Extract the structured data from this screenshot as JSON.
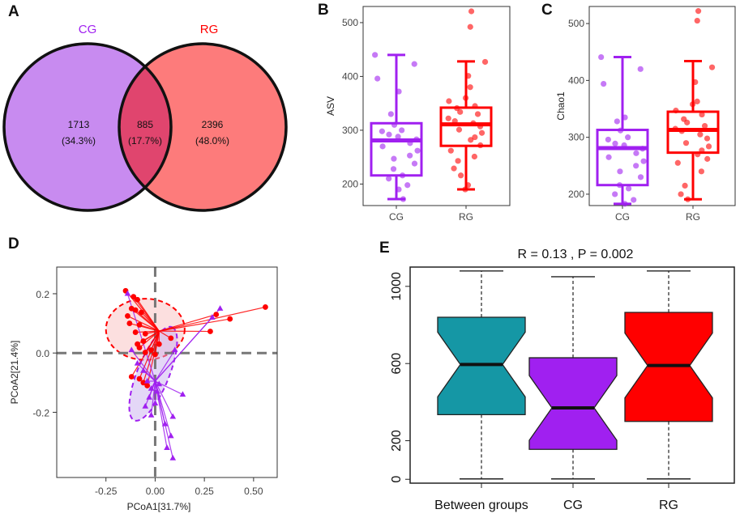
{
  "panels": {
    "a": "A",
    "b": "B",
    "c": "C",
    "d": "D",
    "e": "E"
  },
  "colors": {
    "cg": "#a020f0",
    "rg": "#ff0000",
    "cg_fill": "#c88bf0",
    "rg_fill": "#fd7b7b",
    "overlap": "#e0456e",
    "between": "#1597a5",
    "grey": "#777777"
  },
  "chart_data": [
    {
      "panel": "A",
      "type": "venn",
      "sets": [
        {
          "name": "CG",
          "only": "1713",
          "pct": "(34.3%)"
        },
        {
          "name": "RG",
          "only": "2396",
          "pct": "(48.0%)"
        }
      ],
      "overlap": {
        "value": "885",
        "pct": "(17.7%)"
      }
    },
    {
      "panel": "B",
      "type": "box",
      "ylabel": "ASV",
      "ylim": [
        160,
        530
      ],
      "yticks": [
        200,
        300,
        400,
        500
      ],
      "categories": [
        "CG",
        "RG"
      ],
      "boxes": [
        {
          "name": "CG",
          "min": 172,
          "q1": 216,
          "median": 281,
          "q3": 313,
          "max": 440,
          "points": [
            440,
            423,
            396,
            372,
            330,
            310,
            300,
            298,
            292,
            288,
            283,
            276,
            270,
            262,
            253,
            247,
            238,
            228,
            216,
            210,
            198,
            190,
            172
          ]
        },
        {
          "name": "RG",
          "min": 190,
          "q1": 271,
          "median": 311,
          "q3": 342,
          "max": 428,
          "points": [
            521,
            492,
            427,
            401,
            380,
            360,
            354,
            345,
            341,
            334,
            330,
            322,
            317,
            313,
            307,
            301,
            295,
            287,
            282,
            272,
            262,
            251,
            243,
            229,
            216,
            198,
            190
          ]
        }
      ]
    },
    {
      "panel": "C",
      "type": "box",
      "ylabel": "Chao1",
      "ylim": [
        180,
        530
      ],
      "yticks": [
        200,
        300,
        400,
        500
      ],
      "categories": [
        "CG",
        "RG"
      ],
      "boxes": [
        {
          "name": "CG",
          "min": 183,
          "q1": 216,
          "median": 281,
          "q3": 313,
          "max": 441,
          "points": [
            441,
            420,
            394,
            335,
            328,
            312,
            300,
            296,
            289,
            286,
            280,
            272,
            265,
            258,
            250,
            240,
            230,
            216,
            210,
            200,
            190,
            183
          ]
        },
        {
          "name": "RG",
          "min": 191,
          "q1": 273,
          "median": 313,
          "q3": 345,
          "max": 434,
          "points": [
            522,
            505,
            423,
            397,
            363,
            358,
            347,
            340,
            332,
            326,
            320,
            315,
            311,
            305,
            298,
            290,
            284,
            277,
            270,
            262,
            255,
            240,
            215,
            200,
            191
          ]
        }
      ]
    },
    {
      "panel": "D",
      "type": "scatter",
      "xlabel": "PCoA1[31.7%]",
      "ylabel": "PCoA2[21.4%]",
      "xlim": [
        -0.5,
        0.62
      ],
      "ylim": [
        -0.42,
        0.29
      ],
      "xticks": [
        -0.25,
        0.0,
        0.25,
        0.5
      ],
      "xtick_labels": [
        "-0.25",
        "0.00",
        "0.25",
        "0.50"
      ],
      "yticks": [
        -0.2,
        0.0,
        0.2
      ],
      "ytick_labels": [
        "-0.2",
        "0.0",
        "0.2"
      ],
      "series": [
        {
          "name": "RG",
          "centroid": [
            0.02,
            0.074
          ],
          "ellipse": {
            "cx": -0.05,
            "cy": 0.08,
            "rx": 0.44,
            "ry": 0.16
          },
          "points": [
            [
              0.56,
              0.155
            ],
            [
              0.38,
              0.115
            ],
            [
              0.31,
              0.13
            ],
            [
              0.28,
              0.073
            ],
            [
              -0.15,
              0.21
            ],
            [
              -0.11,
              0.19
            ],
            [
              -0.09,
              0.18
            ],
            [
              -0.1,
              0.145
            ],
            [
              -0.12,
              0.15
            ],
            [
              -0.07,
              0.137
            ],
            [
              -0.14,
              0.125
            ],
            [
              -0.13,
              0.1
            ],
            [
              -0.08,
              0.095
            ],
            [
              -0.1,
              0.07
            ],
            [
              -0.05,
              0.065
            ],
            [
              -0.06,
              0.04
            ],
            [
              -0.09,
              0.03
            ],
            [
              -0.08,
              0.018
            ],
            [
              -0.02,
              0.01
            ],
            [
              0.0,
              -0.005
            ],
            [
              -0.05,
              0.002
            ],
            [
              -0.12,
              -0.08
            ],
            [
              -0.08,
              -0.087
            ],
            [
              -0.06,
              -0.1
            ],
            [
              -0.04,
              -0.11
            ],
            [
              0.02,
              0.03
            ],
            [
              0.08,
              0.05
            ]
          ]
        },
        {
          "name": "CG",
          "centroid": [
            0.0,
            -0.095
          ],
          "ellipse": {
            "cx": -0.01,
            "cy": -0.07,
            "rx": 0.32,
            "ry": 0.095,
            "rotate": -68
          },
          "points": [
            [
              0.33,
              0.15
            ],
            [
              0.29,
              0.12
            ],
            [
              0.1,
              0.01
            ],
            [
              0.14,
              -0.14
            ],
            [
              0.09,
              -0.215
            ],
            [
              0.08,
              -0.28
            ],
            [
              0.09,
              -0.355
            ],
            [
              0.06,
              -0.32
            ],
            [
              0.05,
              -0.24
            ],
            [
              -0.02,
              -0.21
            ],
            [
              -0.05,
              -0.18
            ],
            [
              0.0,
              -0.17
            ],
            [
              -0.03,
              -0.15
            ],
            [
              0.01,
              -0.13
            ],
            [
              -0.02,
              -0.12
            ],
            [
              0.02,
              -0.105
            ],
            [
              -0.04,
              -0.095
            ],
            [
              -0.09,
              -0.035
            ],
            [
              -0.12,
              0.01
            ],
            [
              -0.14,
              0.2
            ],
            [
              -0.06,
              -0.06
            ]
          ]
        }
      ]
    },
    {
      "panel": "E",
      "type": "box",
      "title": "R =  0.13 ,  P =  0.002",
      "ylim": [
        -20,
        1100
      ],
      "yticks": [
        0,
        200,
        600,
        1000
      ],
      "categories": [
        "Between groups",
        "CG",
        "RG"
      ],
      "boxes": [
        {
          "name": "Between groups",
          "min": 2,
          "q1": 335,
          "median": 595,
          "q3": 840,
          "max": 1080
        },
        {
          "name": "CG",
          "min": 2,
          "q1": 155,
          "median": 370,
          "q3": 630,
          "max": 1050
        },
        {
          "name": "RG",
          "min": 2,
          "q1": 300,
          "median": 590,
          "q3": 865,
          "max": 1080
        }
      ]
    }
  ]
}
